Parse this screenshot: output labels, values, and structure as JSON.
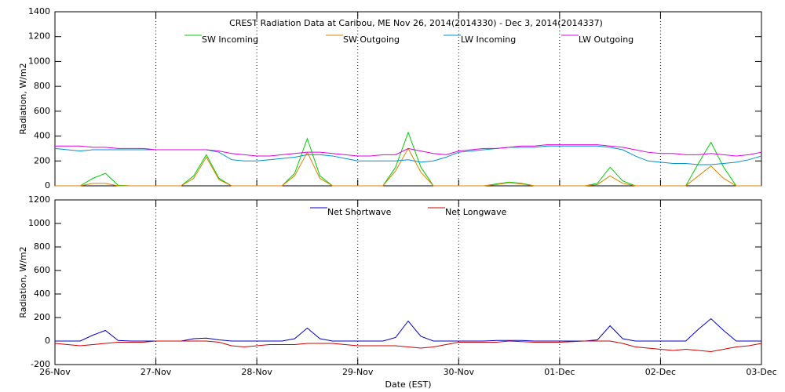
{
  "chart_data": [
    {
      "type": "line",
      "title": "CREST Radiation Data at Caribou, ME   Nov 26, 2014(2014330) - Dec  3, 2014(2014337)",
      "ylabel": "Radiation, W/m2",
      "ylim": [
        0,
        1400
      ],
      "yticks": [
        0,
        200,
        400,
        600,
        800,
        1000,
        1200,
        1400
      ],
      "grid": true,
      "series": [
        {
          "name": "SW Incoming",
          "color": "#00d000",
          "values": [
            0,
            0,
            0,
            60,
            100,
            5,
            0,
            0,
            0,
            0,
            0,
            80,
            250,
            60,
            0,
            0,
            0,
            0,
            0,
            100,
            380,
            80,
            0,
            0,
            0,
            0,
            0,
            150,
            430,
            150,
            0,
            0,
            0,
            0,
            0,
            15,
            30,
            20,
            0,
            0,
            0,
            0,
            0,
            20,
            150,
            40,
            0,
            0,
            0,
            0,
            0,
            180,
            350,
            150,
            0,
            0,
            0
          ]
        },
        {
          "name": "SW Outgoing",
          "color": "#e08000",
          "values": [
            0,
            0,
            0,
            20,
            20,
            0,
            0,
            0,
            0,
            0,
            0,
            60,
            230,
            50,
            0,
            0,
            0,
            0,
            0,
            80,
            270,
            60,
            0,
            0,
            0,
            0,
            0,
            120,
            300,
            110,
            0,
            0,
            0,
            0,
            0,
            10,
            25,
            15,
            0,
            0,
            0,
            0,
            0,
            10,
            80,
            20,
            0,
            0,
            0,
            0,
            0,
            80,
            160,
            60,
            0,
            0,
            0
          ]
        },
        {
          "name": "LW Incoming",
          "color": "#0090d0",
          "values": [
            300,
            290,
            280,
            290,
            290,
            290,
            290,
            290,
            290,
            290,
            290,
            290,
            290,
            270,
            210,
            200,
            200,
            210,
            220,
            230,
            250,
            250,
            240,
            220,
            200,
            200,
            200,
            200,
            210,
            190,
            200,
            230,
            270,
            280,
            290,
            300,
            310,
            310,
            310,
            320,
            320,
            320,
            320,
            320,
            310,
            290,
            240,
            200,
            190,
            180,
            180,
            170,
            170,
            180,
            190,
            210,
            240
          ]
        },
        {
          "name": "LW Outgoing",
          "color": "#e000e0",
          "values": [
            320,
            320,
            320,
            310,
            310,
            300,
            300,
            300,
            290,
            290,
            290,
            290,
            290,
            280,
            260,
            250,
            240,
            240,
            250,
            260,
            270,
            270,
            260,
            250,
            240,
            240,
            250,
            250,
            300,
            280,
            260,
            250,
            280,
            290,
            300,
            300,
            310,
            320,
            320,
            330,
            330,
            330,
            330,
            330,
            320,
            310,
            290,
            270,
            260,
            260,
            250,
            250,
            260,
            250,
            240,
            250,
            270
          ]
        }
      ]
    },
    {
      "type": "line",
      "xlabel": "Date (EST)",
      "ylabel": "Radiation, W/m2",
      "categories": [
        "26-Nov",
        null,
        null,
        null,
        null,
        null,
        null,
        null,
        "27-Nov",
        null,
        null,
        null,
        null,
        null,
        null,
        null,
        "28-Nov",
        null,
        null,
        null,
        null,
        null,
        null,
        null,
        "29-Nov",
        null,
        null,
        null,
        null,
        null,
        null,
        null,
        "30-Nov",
        null,
        null,
        null,
        null,
        null,
        null,
        null,
        "01-Dec",
        null,
        null,
        null,
        null,
        null,
        null,
        null,
        "02-Dec",
        null,
        null,
        null,
        null,
        null,
        null,
        null,
        "03-Dec"
      ],
      "ylim": [
        -200,
        1200
      ],
      "yticks": [
        -200,
        0,
        200,
        400,
        600,
        800,
        1000,
        1200
      ],
      "grid": true,
      "series": [
        {
          "name": "Net Shortwave",
          "color": "#0000c0",
          "values": [
            0,
            0,
            0,
            50,
            90,
            5,
            0,
            0,
            0,
            0,
            0,
            20,
            25,
            10,
            0,
            0,
            0,
            0,
            0,
            20,
            110,
            20,
            0,
            0,
            0,
            0,
            0,
            30,
            170,
            40,
            0,
            0,
            0,
            0,
            0,
            5,
            5,
            5,
            0,
            0,
            0,
            0,
            0,
            10,
            130,
            20,
            0,
            0,
            0,
            0,
            0,
            100,
            190,
            90,
            0,
            0,
            0
          ]
        },
        {
          "name": "Net Longwave",
          "color": "#d00000",
          "values": [
            -20,
            -30,
            -40,
            -30,
            -20,
            -10,
            -10,
            -10,
            0,
            0,
            0,
            0,
            0,
            -10,
            -40,
            -50,
            -40,
            -30,
            -30,
            -30,
            -20,
            -20,
            -20,
            -30,
            -40,
            -40,
            -40,
            -40,
            -50,
            -60,
            -50,
            -30,
            -10,
            -10,
            -10,
            -10,
            0,
            -5,
            -10,
            -10,
            -10,
            -5,
            0,
            0,
            0,
            -20,
            -50,
            -60,
            -70,
            -80,
            -70,
            -80,
            -90,
            -70,
            -50,
            -40,
            -20
          ]
        }
      ]
    }
  ]
}
